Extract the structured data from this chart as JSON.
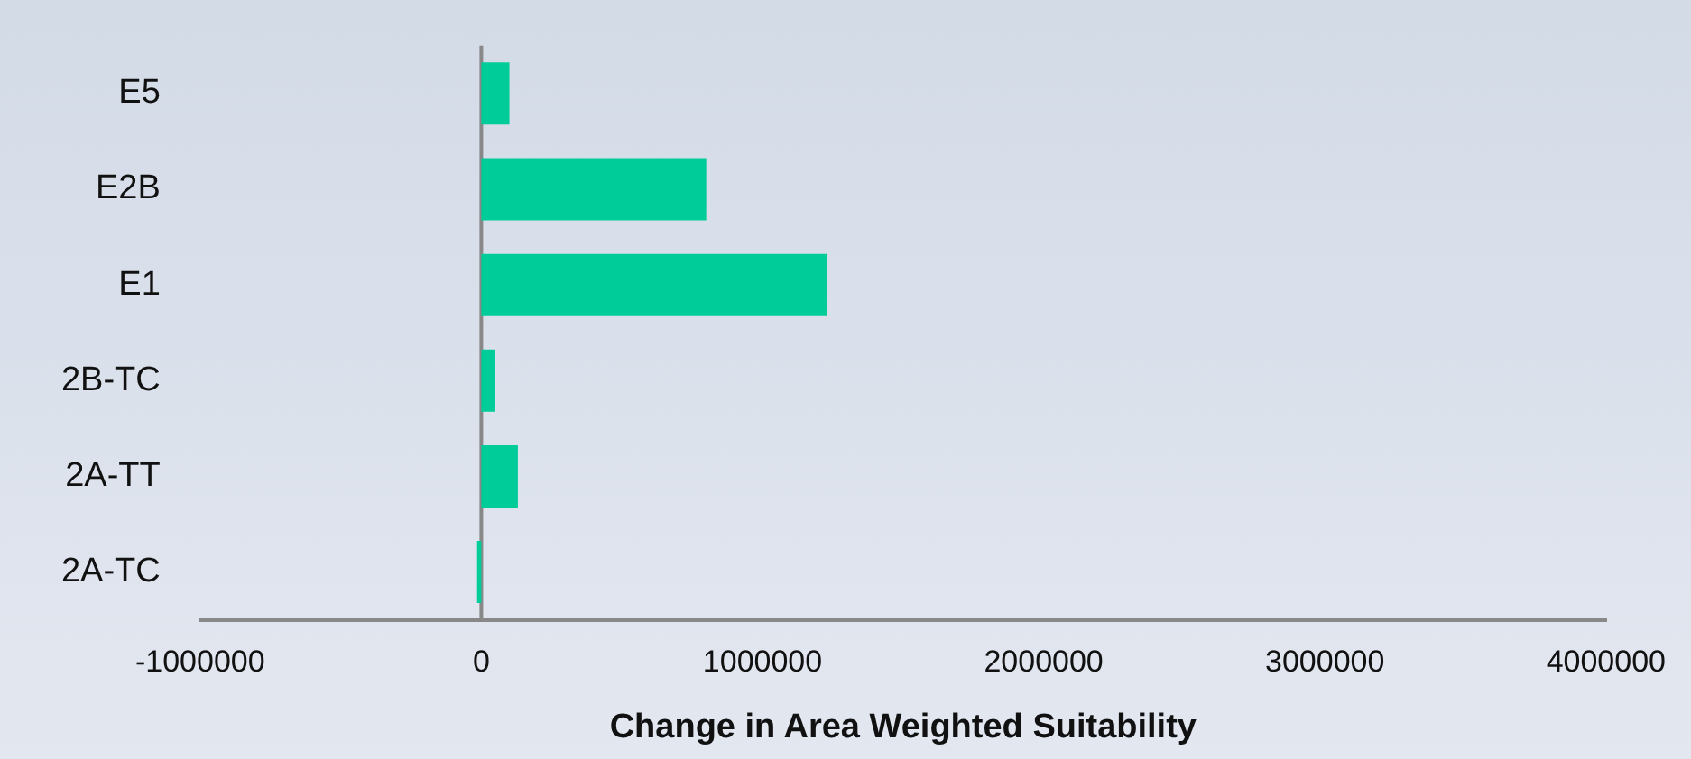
{
  "chart_data": {
    "type": "bar",
    "orientation": "horizontal",
    "xlabel": "Change in Area Weighted Suitability",
    "categories": [
      "E5",
      "E2B",
      "E1",
      "2B-TC",
      "2A-TT",
      "2A-TC"
    ],
    "values": [
      100000,
      800000,
      1230000,
      50000,
      130000,
      -15000
    ],
    "color": "#00cc99",
    "xlim": [
      -1000000,
      4000000
    ],
    "xticks": [
      -1000000,
      0,
      1000000,
      2000000,
      3000000,
      4000000
    ],
    "ref_lines": [
      {
        "axis": "x",
        "value": 0,
        "color": "#888888"
      }
    ],
    "grid": false,
    "legend": false
  }
}
